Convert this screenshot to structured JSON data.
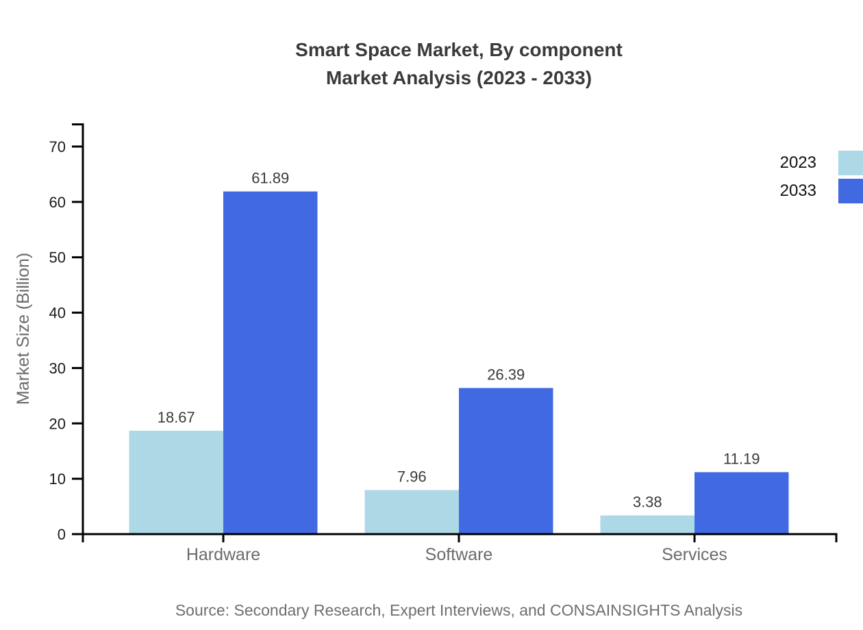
{
  "title": {
    "line1": "Smart Space Market, By component",
    "line2": "Market Analysis (2023 - 2033)"
  },
  "y_axis_label": "Market Size (Billion)",
  "source_note": "Source: Secondary Research, Expert Interviews, and CONSAINSIGHTS Analysis",
  "legend": {
    "position": "top-right",
    "items": [
      {
        "label": "2023",
        "color": "#ADD8E6"
      },
      {
        "label": "2033",
        "color": "#4169E1"
      }
    ]
  },
  "chart_data": {
    "type": "bar",
    "title": "Smart Space Market, By component Market Analysis (2023 - 2033)",
    "categories": [
      "Hardware",
      "Software",
      "Services"
    ],
    "series": [
      {
        "name": "2023",
        "color": "#ADD8E6",
        "values": [
          18.67,
          7.96,
          3.38
        ]
      },
      {
        "name": "2033",
        "color": "#4169E1",
        "values": [
          61.89,
          26.39,
          11.19
        ]
      }
    ],
    "xlabel": "",
    "ylabel": "Market Size (Billion)",
    "ylim": [
      0,
      74
    ],
    "yticks": [
      0,
      10,
      20,
      30,
      40,
      50,
      60,
      70
    ],
    "grid": false,
    "value_labels": true,
    "legend_position": "top-right",
    "axis_color": "#000000",
    "text_colors": {
      "title": "#3a3a3a",
      "tick": "#1a1a1a",
      "category": "#6b6b6b",
      "value": "#3a3a3a",
      "axis_label": "#6b6b6b",
      "legend": "#111111",
      "source": "#6e6e6e"
    }
  }
}
